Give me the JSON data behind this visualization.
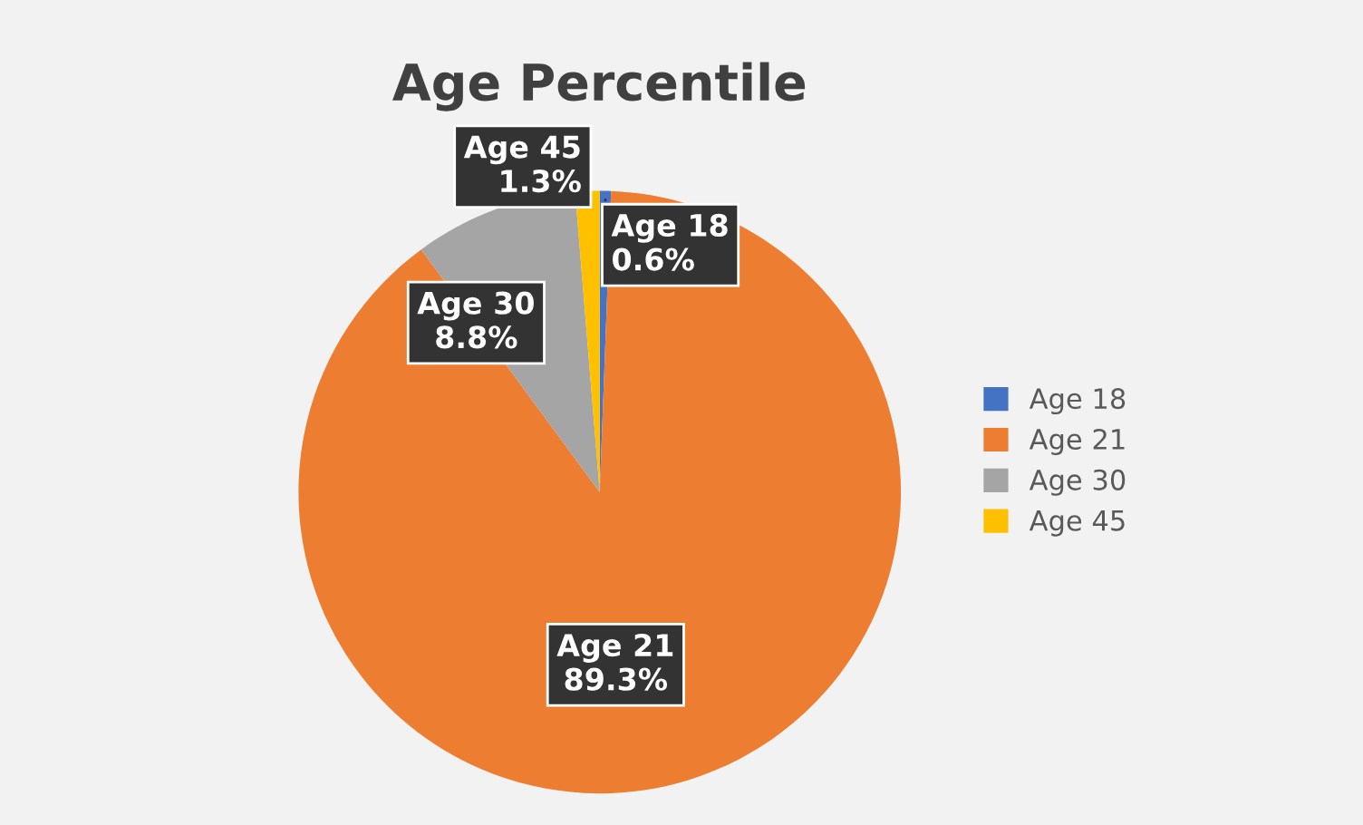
{
  "chart_data": {
    "type": "pie",
    "title": "Age Percentile",
    "categories": [
      "Age 18",
      "Age 21",
      "Age 30",
      "Age 45"
    ],
    "values": [
      0.6,
      89.3,
      8.8,
      1.3
    ],
    "value_labels": [
      "0.6%",
      "89.3%",
      "8.8%",
      "1.3%"
    ],
    "colors": [
      "#4472c4",
      "#ed7d31",
      "#a5a5a5",
      "#ffc000"
    ],
    "legend": "right"
  }
}
